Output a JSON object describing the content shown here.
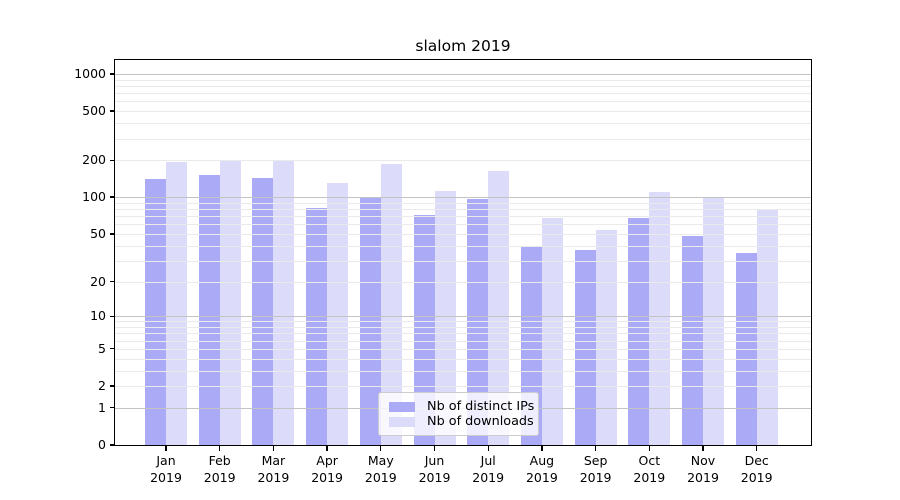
{
  "chart_data": {
    "type": "bar",
    "title": "slalom 2019",
    "categories": [
      "Jan 2019",
      "Feb 2019",
      "Mar 2019",
      "Apr 2019",
      "May 2019",
      "Jun 2019",
      "Jul 2019",
      "Aug 2019",
      "Sep 2019",
      "Oct 2019",
      "Nov 2019",
      "Dec 2019"
    ],
    "series": [
      {
        "name": "Nb of distinct IPs",
        "color": "#aaaaf7",
        "values": [
          140,
          152,
          143,
          81,
          98,
          71,
          97,
          40,
          37,
          68,
          48,
          35
        ]
      },
      {
        "name": "Nb of downloads",
        "color": "#dcdcfa",
        "values": [
          195,
          197,
          196,
          130,
          187,
          112,
          163,
          68,
          54,
          110,
          100,
          79
        ]
      }
    ],
    "yscale": "log1p",
    "y_ticks": [
      1000,
      500,
      200,
      100,
      50,
      20,
      10,
      5,
      2,
      1,
      0
    ],
    "ylim": [
      0,
      1300
    ],
    "xlabel": "",
    "ylabel": "",
    "grid": true,
    "legend": {
      "position": "lower center"
    }
  }
}
